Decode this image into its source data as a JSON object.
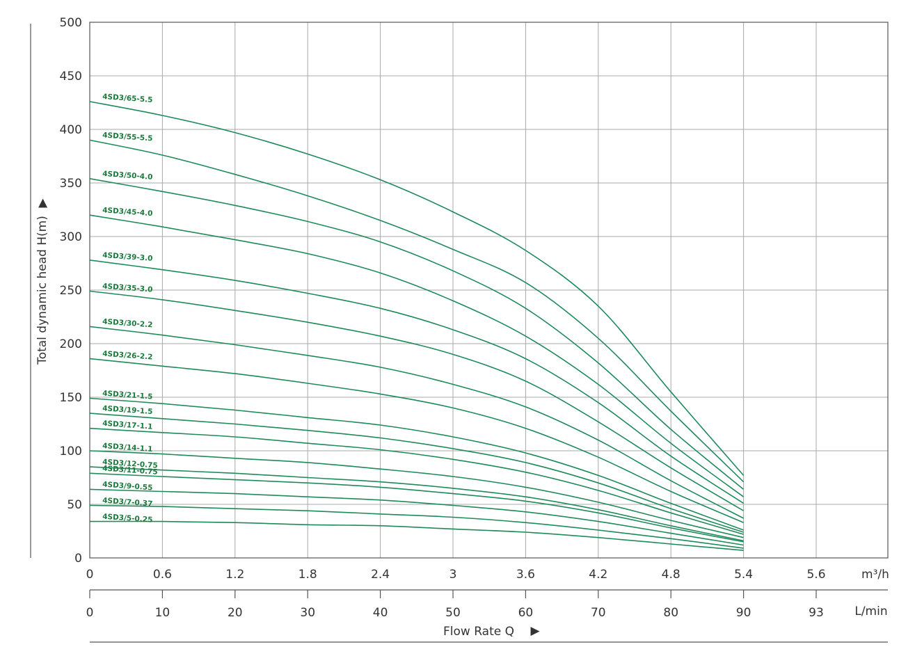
{
  "chart_data": {
    "type": "line",
    "ylabel": "Total dynamic head H(m)",
    "xlabel": "Flow Rate Q",
    "ylim": [
      0,
      500
    ],
    "yticks": [
      0,
      50,
      100,
      150,
      200,
      250,
      300,
      350,
      400,
      450,
      500
    ],
    "x_axis_m3h": {
      "unit": "m³/h",
      "ticks": [
        "0",
        "0.6",
        "1.2",
        "1.8",
        "2.4",
        "3",
        "3.6",
        "4.2",
        "4.8",
        "5.4",
        "5.6"
      ]
    },
    "x_axis_lmin": {
      "unit": "L/min",
      "ticks": [
        "0",
        "10",
        "20",
        "30",
        "40",
        "50",
        "60",
        "70",
        "80",
        "90",
        "93"
      ]
    },
    "x_values_m3h": [
      0,
      0.6,
      1.2,
      1.8,
      2.4,
      3,
      3.6,
      4.2,
      4.8,
      5.4
    ],
    "grid": true,
    "line_color": "#1e8a5a",
    "label_color": "#1a7a3c",
    "series": [
      {
        "name": "4SD3/65-5.5",
        "values": [
          426,
          413,
          397,
          377,
          353,
          323,
          287,
          235,
          155,
          77
        ]
      },
      {
        "name": "4SD3/55-5.5",
        "values": [
          390,
          376,
          358,
          338,
          315,
          288,
          257,
          205,
          137,
          71
        ]
      },
      {
        "name": "4SD3/50-4.0",
        "values": [
          354,
          342,
          329,
          314,
          295,
          268,
          233,
          182,
          120,
          64
        ]
      },
      {
        "name": "4SD3/45-4.0",
        "values": [
          320,
          309,
          297,
          284,
          266,
          240,
          207,
          162,
          107,
          57
        ]
      },
      {
        "name": "4SD3/39-3.0",
        "values": [
          278,
          269,
          259,
          247,
          233,
          213,
          186,
          145,
          95,
          51
        ]
      },
      {
        "name": "4SD3/35-3.0",
        "values": [
          249,
          241,
          231,
          220,
          207,
          190,
          165,
          127,
          84,
          44
        ]
      },
      {
        "name": "4SD3/30-2.2",
        "values": [
          216,
          208,
          199,
          189,
          178,
          162,
          141,
          110,
          72,
          37
        ]
      },
      {
        "name": "4SD3/26-2.2",
        "values": [
          186,
          179,
          172,
          163,
          153,
          140,
          121,
          94,
          62,
          33
        ]
      },
      {
        "name": "4SD3/21-1.5",
        "values": [
          149,
          144,
          138,
          131,
          124,
          113,
          98,
          77,
          51,
          26
        ]
      },
      {
        "name": "4SD3/19-1.5",
        "values": [
          135,
          130,
          125,
          119,
          112,
          102,
          89,
          70,
          46,
          24
        ]
      },
      {
        "name": "4SD3/17-1.1",
        "values": [
          121,
          117,
          113,
          107,
          101,
          92,
          80,
          63,
          42,
          22
        ]
      },
      {
        "name": "4SD3/14-1.1",
        "values": [
          100,
          97,
          93,
          89,
          83,
          76,
          66,
          52,
          35,
          19
        ]
      },
      {
        "name": "4SD3/12-0.75",
        "values": [
          85,
          82,
          79,
          75,
          71,
          65,
          57,
          45,
          30,
          16
        ]
      },
      {
        "name": "4SD3/11-0.75",
        "values": [
          79,
          76,
          73,
          70,
          66,
          60,
          53,
          42,
          28,
          15
        ]
      },
      {
        "name": "4SD3/9-0.55",
        "values": [
          64,
          62,
          60,
          57,
          54,
          49,
          43,
          34,
          23,
          12
        ]
      },
      {
        "name": "4SD3/7-0.37",
        "values": [
          49,
          48,
          46,
          44,
          41,
          38,
          33,
          26,
          18,
          9
        ]
      },
      {
        "name": "4SD3/5-0.25",
        "values": [
          34,
          34,
          33,
          31,
          30,
          27,
          24,
          19,
          13,
          7
        ]
      }
    ]
  },
  "flow_arrow": "▶",
  "head_arrow": "▶"
}
